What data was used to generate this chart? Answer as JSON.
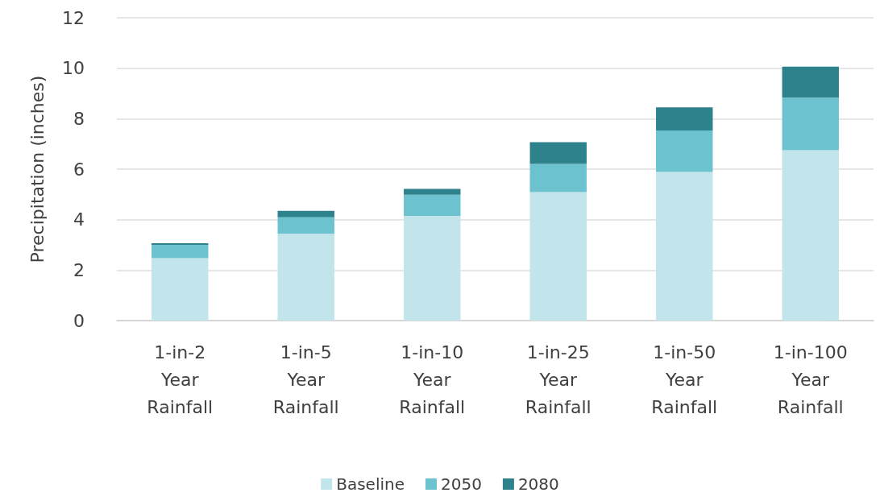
{
  "chart_data": {
    "type": "bar",
    "stacked": true,
    "ylabel": "Precipitation (inches)",
    "categories": [
      "1-in-2 Year Rainfall",
      "1-in-5 Year Rainfall",
      "1-in-10 Year Rainfall",
      "1-in-25 Year Rainfall",
      "1-in-50 Year Rainfall",
      "1-in-100 Year Rainfall"
    ],
    "series": [
      {
        "name": "Baseline",
        "color": "#c1e5eb",
        "values": [
          2.47,
          3.44,
          4.15,
          5.09,
          5.89,
          6.75
        ]
      },
      {
        "name": "2050",
        "color": "#6cc3cf",
        "values": [
          0.53,
          0.65,
          0.84,
          1.12,
          1.64,
          2.08
        ]
      },
      {
        "name": "2080",
        "color": "#2e828c",
        "values": [
          0.06,
          0.26,
          0.23,
          0.86,
          0.92,
          1.23
        ]
      }
    ],
    "ylim": [
      0,
      12
    ],
    "yticks": [
      0,
      2,
      4,
      6,
      8,
      10,
      12
    ],
    "grid": "y",
    "legend": "bottom"
  }
}
